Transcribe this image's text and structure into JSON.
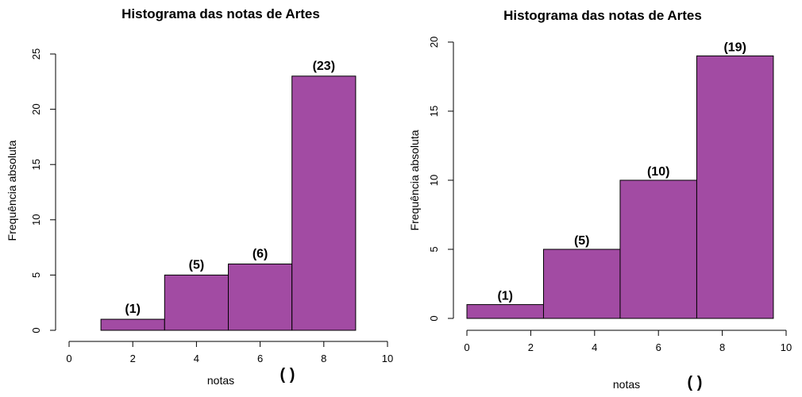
{
  "chart_data": [
    {
      "type": "bar",
      "title": "Histograma das notas de Artes",
      "xlabel": "notas",
      "ylabel": "Frequência absoluta",
      "annotation": "( )",
      "xlim": [
        0,
        10
      ],
      "ylim": [
        0,
        25
      ],
      "xticks": [
        "0",
        "2",
        "4",
        "6",
        "8",
        "10"
      ],
      "yticks": [
        "0",
        "5",
        "10",
        "15",
        "20",
        "25"
      ],
      "bins": [
        [
          1,
          3
        ],
        [
          3,
          5
        ],
        [
          5,
          7
        ],
        [
          7,
          9
        ]
      ],
      "values": [
        1,
        5,
        6,
        23
      ],
      "labels": [
        "(1)",
        "(5)",
        "(6)",
        "(23)"
      ],
      "color": "#a24ba3"
    },
    {
      "type": "bar",
      "title": "Histograma das notas de Artes",
      "xlabel": "notas",
      "ylabel": "Frequência absoluta",
      "annotation": "(    )",
      "xlim": [
        0,
        10
      ],
      "ylim": [
        0,
        20
      ],
      "xticks": [
        "0",
        "2",
        "4",
        "6",
        "8",
        "10"
      ],
      "yticks": [
        "0",
        "5",
        "10",
        "15",
        "20"
      ],
      "bins": [
        [
          0,
          2.4
        ],
        [
          2.4,
          4.8
        ],
        [
          4.8,
          7.2
        ],
        [
          7.2,
          9.6
        ]
      ],
      "values": [
        1,
        5,
        10,
        19
      ],
      "labels": [
        "(1)",
        "(5)",
        "(10)",
        "(19)"
      ],
      "color": "#a24ba3"
    }
  ]
}
